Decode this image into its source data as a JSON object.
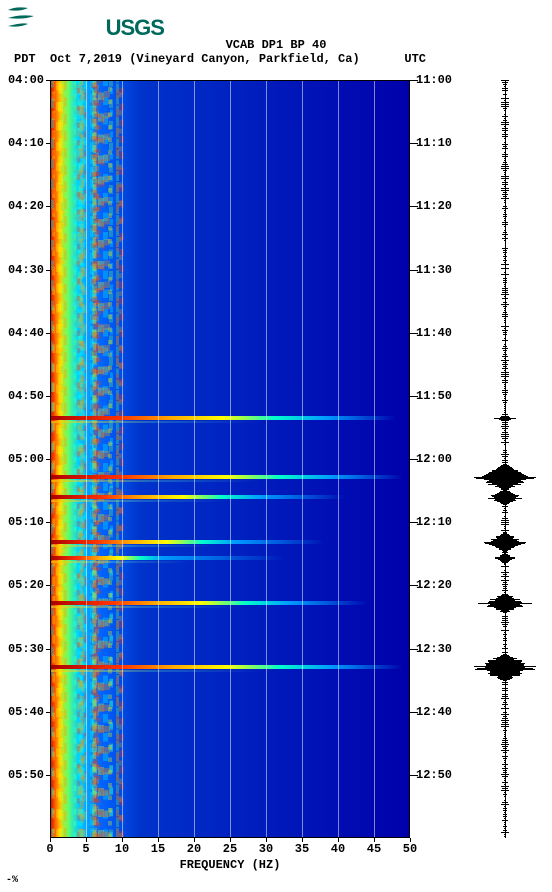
{
  "logo": {
    "text": "USGS",
    "color": "#00695c",
    "fontsize": 22
  },
  "title": "VCAB DP1 BP 40",
  "title_fontsize": 12,
  "subtitle": "Oct 7,2019 (Vineyard Canyon, Parkfield, Ca)",
  "tz_left": "PDT",
  "tz_right": "UTC",
  "subtitle_fontsize": 12,
  "xlabel": "FREQUENCY (HZ)",
  "spectrogram": {
    "type": "spectrogram",
    "x_range": [
      0,
      50
    ],
    "x_ticks": [
      0,
      5,
      10,
      15,
      20,
      25,
      30,
      35,
      40,
      45,
      50
    ],
    "left_time_ticks": [
      "04:00",
      "04:10",
      "04:20",
      "04:30",
      "04:40",
      "04:50",
      "05:00",
      "05:10",
      "05:20",
      "05:30",
      "05:40",
      "05:50"
    ],
    "right_time_ticks": [
      "11:00",
      "11:10",
      "11:20",
      "11:30",
      "11:40",
      "11:50",
      "12:00",
      "12:10",
      "12:20",
      "12:30",
      "12:40",
      "12:50"
    ],
    "y_positions_pct": [
      0,
      8.33,
      16.67,
      25,
      33.33,
      41.67,
      50,
      58.33,
      66.67,
      75,
      83.33,
      91.67
    ],
    "background_gradient": {
      "stops": [
        {
          "pct": 0,
          "color": "#cc0000"
        },
        {
          "pct": 1.5,
          "color": "#ff6600"
        },
        {
          "pct": 3,
          "color": "#ffcc00"
        },
        {
          "pct": 5,
          "color": "#66ff66"
        },
        {
          "pct": 8,
          "color": "#00ccff"
        },
        {
          "pct": 14,
          "color": "#0066ff"
        },
        {
          "pct": 25,
          "color": "#0033cc"
        },
        {
          "pct": 100,
          "color": "#0000aa"
        }
      ]
    },
    "events": [
      {
        "t_pct": 44.6,
        "intensity": 1.0,
        "width_pct": 96
      },
      {
        "t_pct": 52.4,
        "intensity": 1.0,
        "width_pct": 98
      },
      {
        "t_pct": 55.0,
        "intensity": 0.9,
        "width_pct": 82
      },
      {
        "t_pct": 60.9,
        "intensity": 0.85,
        "width_pct": 76
      },
      {
        "t_pct": 63.0,
        "intensity": 0.6,
        "width_pct": 65
      },
      {
        "t_pct": 69.0,
        "intensity": 0.95,
        "width_pct": 88
      },
      {
        "t_pct": 77.5,
        "intensity": 1.0,
        "width_pct": 98
      }
    ],
    "grid_color": "#ffffff",
    "border_color": "#000000"
  },
  "seismogram": {
    "type": "waveform",
    "baseline_color": "#000000",
    "events": [
      {
        "t_pct": 44.6,
        "amp": 0.35,
        "h": 2
      },
      {
        "t_pct": 52.4,
        "amp": 0.9,
        "h": 14
      },
      {
        "t_pct": 55.0,
        "amp": 0.5,
        "h": 8
      },
      {
        "t_pct": 60.9,
        "amp": 0.6,
        "h": 10
      },
      {
        "t_pct": 63.0,
        "amp": 0.3,
        "h": 6
      },
      {
        "t_pct": 69.0,
        "amp": 0.7,
        "h": 10
      },
      {
        "t_pct": 77.5,
        "amp": 0.95,
        "h": 14
      }
    ],
    "noise_amp": 0.06
  },
  "footer_mark": "-%"
}
